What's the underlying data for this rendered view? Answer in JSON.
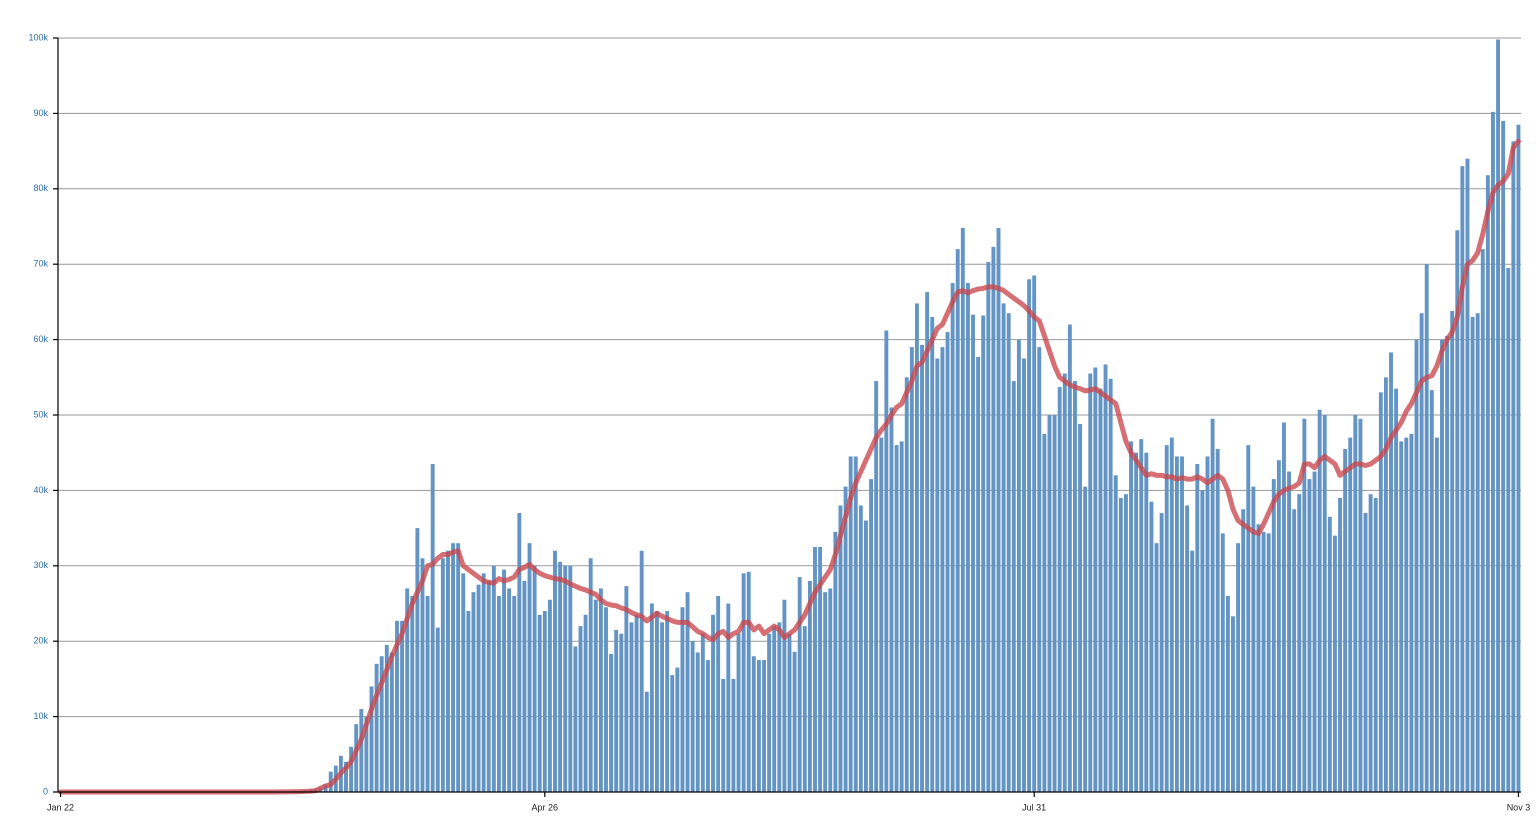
{
  "chart_data": {
    "type": "bar",
    "categories": [
      "Jan 22",
      null,
      null,
      null,
      null,
      null,
      null,
      null,
      null,
      null,
      null,
      null,
      null,
      null,
      null,
      null,
      null,
      null,
      null,
      null,
      null,
      null,
      null,
      null,
      null,
      null,
      null,
      null,
      null,
      null,
      null,
      null,
      null,
      null,
      null,
      null,
      null,
      null,
      null,
      null,
      null,
      null,
      null,
      null,
      null,
      null,
      null,
      null,
      null,
      null,
      null,
      null,
      null,
      null,
      null,
      null,
      null,
      null,
      null,
      null,
      null,
      null,
      null,
      null,
      null,
      null,
      null,
      null,
      null,
      null,
      null,
      null,
      null,
      null,
      null,
      null,
      null,
      null,
      null,
      null,
      null,
      null,
      null,
      null,
      null,
      null,
      null,
      null,
      null,
      null,
      null,
      null,
      null,
      null,
      null,
      "Apr 26",
      null,
      null,
      null,
      null,
      null,
      null,
      null,
      null,
      null,
      null,
      null,
      null,
      null,
      null,
      null,
      null,
      null,
      null,
      null,
      null,
      null,
      null,
      null,
      null,
      null,
      null,
      null,
      null,
      null,
      null,
      null,
      null,
      null,
      null,
      null,
      null,
      null,
      null,
      null,
      null,
      null,
      null,
      null,
      null,
      null,
      null,
      null,
      null,
      null,
      null,
      null,
      null,
      null,
      null,
      null,
      null,
      null,
      null,
      null,
      null,
      null,
      null,
      null,
      null,
      null,
      null,
      null,
      null,
      null,
      null,
      null,
      null,
      null,
      null,
      null,
      null,
      null,
      null,
      null,
      null,
      null,
      null,
      null,
      null,
      null,
      null,
      null,
      null,
      null,
      null,
      null,
      null,
      null,
      null,
      null,
      "Jul 31",
      null,
      null,
      null,
      null,
      null,
      null,
      null,
      null,
      null,
      null,
      null,
      null,
      null,
      null,
      null,
      null,
      null,
      null,
      null,
      null,
      null,
      null,
      null,
      null,
      null,
      null,
      null,
      null,
      null,
      null,
      null,
      null,
      null,
      null,
      null,
      null,
      null,
      null,
      null,
      null,
      null,
      null,
      null,
      null,
      null,
      null,
      null,
      null,
      null,
      null,
      null,
      null,
      null,
      null,
      null,
      null,
      null,
      null,
      null,
      null,
      null,
      null,
      null,
      null,
      null,
      null,
      null,
      null,
      null,
      null,
      null,
      null,
      null,
      null,
      null,
      null,
      null,
      null,
      null,
      null,
      null,
      null,
      null,
      null,
      null,
      null,
      null,
      null,
      null,
      null,
      null,
      null,
      null,
      null,
      "Nov 3"
    ],
    "series": [
      {
        "type": "bar",
        "color": "#6394c4",
        "values": [
          1,
          0,
          1,
          0,
          3,
          0,
          0,
          1,
          0,
          2,
          1,
          0,
          3,
          0,
          0,
          0,
          0,
          0,
          0,
          0,
          1,
          0,
          0,
          0,
          0,
          0,
          0,
          0,
          0,
          0,
          0,
          0,
          0,
          0,
          0,
          3,
          0,
          1,
          7,
          8,
          10,
          20,
          20,
          40,
          60,
          80,
          120,
          150,
          200,
          300,
          450,
          600,
          1000,
          2700,
          3500,
          4800,
          4000,
          6000,
          9000,
          11000,
          10000,
          14000,
          17000,
          18000,
          19500,
          18500,
          22700,
          22700,
          27000,
          26000,
          35000,
          31000,
          26000,
          43500,
          21800,
          31000,
          32000,
          33000,
          33000,
          29000,
          24000,
          26500,
          27500,
          29000,
          28000,
          30000,
          26000,
          29500,
          27000,
          26000,
          37000,
          28000,
          33000,
          30000,
          23500,
          24000,
          25500,
          32000,
          30500,
          30000,
          30000,
          19300,
          22000,
          23500,
          31000,
          25500,
          27000,
          24500,
          18300,
          21500,
          21000,
          27300,
          22500,
          23500,
          32000,
          13300,
          25000,
          24000,
          22500,
          24000,
          15500,
          16500,
          24500,
          26500,
          20000,
          18500,
          21000,
          17500,
          23500,
          26000,
          15000,
          25000,
          15000,
          21000,
          29000,
          29200,
          18000,
          17500,
          17500,
          21000,
          22000,
          22500,
          25500,
          21000,
          18600,
          28500,
          22000,
          28000,
          32500,
          32500,
          26500,
          27000,
          34500,
          38000,
          40500,
          44500,
          44500,
          38000,
          36000,
          41500,
          54500,
          47000,
          61200,
          51000,
          46000,
          46500,
          55000,
          59000,
          64800,
          59300,
          66300,
          63000,
          57500,
          59000,
          61000,
          67500,
          72000,
          74800,
          67500,
          63300,
          57700,
          63200,
          70300,
          72300,
          74800,
          64800,
          63500,
          54500,
          60000,
          57500,
          68000,
          68500,
          59000,
          47500,
          50000,
          50000,
          53700,
          55500,
          62000,
          54500,
          48800,
          40500,
          55500,
          56300,
          53500,
          56700,
          54800,
          42000,
          39000,
          39500,
          46500,
          45000,
          46800,
          45000,
          38500,
          33000,
          37000,
          46000,
          47000,
          44500,
          44500,
          38000,
          32000,
          43500,
          40000,
          44500,
          49500,
          45500,
          34300,
          26000,
          23300,
          33000,
          37500,
          46000,
          40500,
          35500,
          34500,
          34300,
          41500,
          44000,
          49000,
          42500,
          37500,
          39500,
          49500,
          41500,
          42500,
          50700,
          50000,
          36500,
          34000,
          39000,
          45500,
          47000,
          50000,
          49500,
          37000,
          39500,
          39000,
          53000,
          55000,
          58300,
          53500,
          46500,
          47000,
          47500,
          60000,
          63500,
          70000,
          53300,
          47000,
          60000,
          60500,
          63800,
          74500,
          83000,
          84000,
          63000,
          63500,
          72000,
          81800,
          90200,
          99800,
          89000,
          69500,
          86300,
          88500
        ]
      },
      {
        "type": "line",
        "color": "#c9464c",
        "values": [
          0,
          0,
          0,
          0,
          1,
          1,
          1,
          1,
          1,
          1,
          1,
          1,
          1,
          1,
          1,
          1,
          0,
          0,
          0,
          0,
          0,
          0,
          0,
          0,
          0,
          0,
          0,
          0,
          0,
          0,
          0,
          0,
          0,
          0,
          0,
          0,
          1,
          1,
          2,
          2,
          3,
          4,
          7,
          11,
          17,
          25,
          37,
          55,
          80,
          115,
          170,
          500,
          800,
          1000,
          1700,
          2500,
          3200,
          4000,
          5500,
          7000,
          9000,
          11000,
          12800,
          14500,
          16200,
          18000,
          19500,
          21000,
          23000,
          25000,
          26500,
          28000,
          30000,
          30200,
          31000,
          31500,
          31500,
          31800,
          32000,
          30000,
          29500,
          29000,
          28500,
          28000,
          27800,
          27700,
          28300,
          28000,
          28200,
          28500,
          29500,
          29800,
          30200,
          29500,
          29000,
          28700,
          28500,
          28300,
          28200,
          28000,
          27600,
          27300,
          27000,
          26800,
          26500,
          26200,
          25500,
          25000,
          24800,
          24700,
          24400,
          24200,
          23800,
          23500,
          23300,
          22700,
          23200,
          23700,
          23300,
          23000,
          22700,
          22500,
          22500,
          22500,
          21900,
          21300,
          21000,
          20500,
          20200,
          21000,
          21300,
          20500,
          21000,
          21300,
          22500,
          22500,
          21500,
          22000,
          21000,
          21500,
          22000,
          21500,
          20500,
          21000,
          21500,
          22500,
          23500,
          25000,
          26500,
          27500,
          28500,
          29500,
          31500,
          34000,
          36500,
          39000,
          41000,
          42500,
          44000,
          45500,
          47000,
          48000,
          48800,
          50000,
          51000,
          51500,
          53000,
          54500,
          56500,
          57000,
          58500,
          60000,
          61500,
          62000,
          63500,
          65000,
          66300,
          66500,
          66200,
          66500,
          66700,
          66800,
          67000,
          67000,
          66800,
          66500,
          66000,
          65500,
          65000,
          64500,
          63800,
          63000,
          62500,
          60500,
          58500,
          56500,
          55000,
          54500,
          54000,
          53700,
          53500,
          53200,
          53300,
          53500,
          53000,
          52500,
          52000,
          51500,
          49000,
          46500,
          45000,
          44000,
          43000,
          42000,
          42200,
          42000,
          42000,
          41800,
          41800,
          41500,
          41700,
          41500,
          41500,
          41800,
          41500,
          41000,
          41500,
          42000,
          41500,
          40000,
          37500,
          36000,
          35500,
          35000,
          34500,
          34300,
          35500,
          37000,
          38500,
          39500,
          40000,
          40300,
          40500,
          41000,
          43500,
          43500,
          43000,
          44000,
          44500,
          44000,
          43500,
          42000,
          42500,
          43000,
          43500,
          43500,
          43300,
          43500,
          44000,
          44500,
          45500,
          47000,
          48000,
          49000,
          50500,
          51500,
          53000,
          54500,
          55000,
          55200,
          56500,
          58500,
          60000,
          61000,
          63000,
          67000,
          70000,
          70500,
          71500,
          74000,
          77000,
          79500,
          80500,
          81000,
          82000,
          85500,
          86300
        ]
      }
    ],
    "ylim": [
      0,
      100000
    ],
    "yticks": [
      0,
      {
        "value": 10000,
        "label": "10k"
      },
      {
        "value": 20000,
        "label": "20k"
      },
      {
        "value": 30000,
        "label": "30k"
      },
      {
        "value": 40000,
        "label": "40k"
      },
      {
        "value": 50000,
        "label": "50k"
      },
      {
        "value": 60000,
        "label": "60k"
      },
      {
        "value": 70000,
        "label": "70k"
      },
      {
        "value": 80000,
        "label": "80k"
      },
      {
        "value": 90000,
        "label": "90k"
      },
      {
        "value": 100000,
        "label": "100k"
      }
    ],
    "grid": true
  }
}
